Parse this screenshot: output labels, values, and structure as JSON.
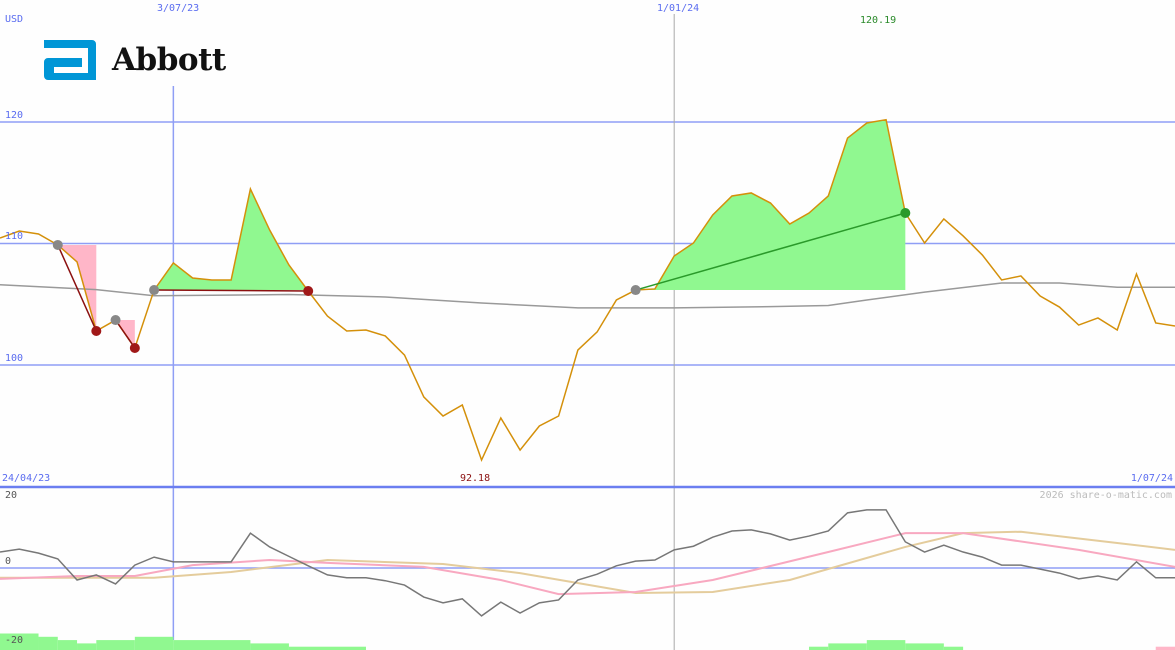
{
  "currency_label": "USD",
  "brand": {
    "name": "Abbott",
    "color": "#0096d6"
  },
  "watermark": "2026 share-o-matic.com",
  "colors": {
    "price": "#d4900a",
    "ma": "#999999",
    "grid": "#8f9ef5",
    "gain": "#90f890",
    "loss": "#ffb6c8",
    "loss_line": "#8b1010",
    "gain_line": "#2a9a2a",
    "osc": "#777777",
    "osc_fast": "#f8a8c0",
    "osc_slow": "#e4cc9c"
  },
  "chart_data": [
    {
      "type": "line",
      "ylabel": "USD",
      "ylim": [
        92,
        120
      ],
      "yticks": [
        "100",
        "110",
        "120"
      ],
      "date_labels": {
        "start": "24/04/23",
        "end": "1/07/24",
        "markers": [
          "3/07/23",
          "1/01/24"
        ]
      },
      "max_label": "120.19",
      "min_label": "92.18",
      "x": [
        "1/05/23",
        "8/05/23",
        "15/05/23",
        "22/05/23",
        "29/05/23",
        "5/06/23",
        "12/06/23",
        "19/06/23",
        "26/06/23",
        "3/07/23",
        "10/07/23",
        "17/07/23",
        "24/07/23",
        "31/07/23",
        "7/08/23",
        "14/08/23",
        "21/08/23",
        "28/08/23",
        "4/09/23",
        "11/09/23",
        "18/09/23",
        "25/09/23",
        "2/10/23",
        "9/10/23",
        "16/10/23",
        "23/10/23",
        "30/10/23",
        "6/11/23",
        "13/11/23",
        "20/11/23",
        "27/11/23",
        "4/12/23",
        "11/12/23",
        "18/12/23",
        "25/12/23",
        "1/01/24",
        "8/01/24",
        "15/01/24",
        "22/01/24",
        "29/01/24",
        "5/02/24",
        "12/02/24",
        "19/02/24",
        "26/02/24",
        "4/03/24",
        "11/03/24",
        "18/03/24",
        "25/03/24",
        "1/04/24",
        "8/04/24",
        "15/04/24",
        "22/04/24",
        "29/04/24",
        "6/05/24",
        "13/05/24",
        "20/05/24",
        "27/05/24",
        "3/06/24",
        "10/06/24",
        "17/06/24",
        "24/06/24",
        "1/07/24"
      ],
      "price": [
        110.45,
        111.03,
        110.78,
        109.88,
        108.48,
        102.8,
        103.7,
        101.4,
        106.17,
        108.4,
        107.16,
        107.0,
        107.0,
        114.49,
        111.11,
        108.23,
        106.09,
        104.03,
        102.8,
        102.88,
        102.39,
        100.82,
        97.37,
        95.8,
        96.71,
        92.18,
        95.64,
        93.0,
        94.98,
        95.8,
        101.23,
        102.72,
        105.35,
        106.17,
        106.26,
        108.97,
        110.04,
        112.35,
        113.91,
        114.16,
        113.33,
        111.6,
        112.51,
        113.91,
        118.68,
        119.92,
        120.19,
        112.51,
        110.04,
        112.02,
        110.62,
        109.05,
        107.0,
        107.33,
        105.68,
        104.77,
        103.29,
        103.87,
        102.88,
        107.49,
        103.46,
        103.21
      ],
      "moving_average": [
        {
          "x": "1/05/23",
          "y": 106.6
        },
        {
          "x": "5/06/23",
          "y": 106.2
        },
        {
          "x": "26/06/23",
          "y": 105.7
        },
        {
          "x": "14/08/23",
          "y": 105.8
        },
        {
          "x": "18/09/23",
          "y": 105.6
        },
        {
          "x": "23/10/23",
          "y": 105.1
        },
        {
          "x": "27/11/23",
          "y": 104.7
        },
        {
          "x": "1/01/24",
          "y": 104.7
        },
        {
          "x": "5/02/24",
          "y": 104.8
        },
        {
          "x": "26/02/24",
          "y": 104.9
        },
        {
          "x": "11/03/24",
          "y": 105.35
        },
        {
          "x": "1/04/24",
          "y": 106.0
        },
        {
          "x": "29/04/24",
          "y": 106.75
        },
        {
          "x": "20/05/24",
          "y": 106.75
        },
        {
          "x": "10/06/24",
          "y": 106.4
        },
        {
          "x": "1/07/24",
          "y": 106.4
        }
      ],
      "trades": [
        {
          "entry": "22/05/23",
          "exit": "5/06/23",
          "level": 109.88,
          "result": "loss"
        },
        {
          "entry": "12/06/23",
          "exit": "19/06/23",
          "level": 103.7,
          "result": "loss"
        },
        {
          "entry": "26/06/23",
          "exit": "21/08/23",
          "level": 106.17,
          "result": "loss"
        },
        {
          "entry": "18/12/23",
          "exit": "25/03/24",
          "level": 106.17,
          "result": "gain"
        }
      ]
    },
    {
      "type": "line",
      "ylim": [
        -20,
        20
      ],
      "yticks": [
        "-20",
        "0",
        "20"
      ],
      "oscillator": [
        4.4,
        5.2,
        4.1,
        2.5,
        -3.3,
        -1.9,
        -4.4,
        0.8,
        3,
        1.7,
        1.7,
        1.7,
        1.7,
        9.6,
        5.8,
        3.2,
        0.6,
        -1.9,
        -2.7,
        -2.7,
        -3.5,
        -4.7,
        -8,
        -9.6,
        -8.5,
        -13.2,
        -9.4,
        -12.4,
        -9.6,
        -8.8,
        -3.3,
        -1.7,
        0.6,
        1.9,
        2.2,
        5,
        6,
        8.5,
        10.2,
        10.5,
        9.4,
        7.7,
        8.8,
        10.2,
        15.2,
        16,
        16,
        7.2,
        4.4,
        6.3,
        4.4,
        3,
        0.8,
        0.8,
        -0.3,
        -1.4,
        -3,
        -2.2,
        -3.3,
        1.7,
        -2.7,
        -2.7
      ],
      "fast_signal": [
        {
          "x": "1/05/23",
          "y": -3
        },
        {
          "x": "29/05/23",
          "y": -2.2
        },
        {
          "x": "19/06/23",
          "y": -2.2
        },
        {
          "x": "10/07/23",
          "y": 0.8
        },
        {
          "x": "7/08/23",
          "y": 2.2
        },
        {
          "x": "28/08/23",
          "y": 1.4
        },
        {
          "x": "2/10/23",
          "y": 0.3
        },
        {
          "x": "30/10/23",
          "y": -3.3
        },
        {
          "x": "20/11/23",
          "y": -7.2
        },
        {
          "x": "18/12/23",
          "y": -6.6
        },
        {
          "x": "15/01/24",
          "y": -3.3
        },
        {
          "x": "26/02/24",
          "y": 4.4
        },
        {
          "x": "25/03/24",
          "y": 9.6
        },
        {
          "x": "15/04/24",
          "y": 9.6
        },
        {
          "x": "27/05/24",
          "y": 5
        },
        {
          "x": "1/07/24",
          "y": 0.3
        }
      ],
      "slow_signal": [
        {
          "x": "1/05/23",
          "y": -2.7
        },
        {
          "x": "26/06/23",
          "y": -2.7
        },
        {
          "x": "24/07/23",
          "y": -1.1
        },
        {
          "x": "28/08/23",
          "y": 2.2
        },
        {
          "x": "9/10/23",
          "y": 1.1
        },
        {
          "x": "6/11/23",
          "y": -1.4
        },
        {
          "x": "18/12/23",
          "y": -6.9
        },
        {
          "x": "15/01/24",
          "y": -6.6
        },
        {
          "x": "12/02/24",
          "y": -3.3
        },
        {
          "x": "25/03/24",
          "y": 5.8
        },
        {
          "x": "15/04/24",
          "y": 9.6
        },
        {
          "x": "6/05/24",
          "y": 10
        },
        {
          "x": "10/06/24",
          "y": 6.9
        },
        {
          "x": "1/07/24",
          "y": 5
        }
      ],
      "bars": [
        {
          "from": "1/05/23",
          "to": "15/05/23",
          "value": 5,
          "sign": "pos"
        },
        {
          "from": "15/05/23",
          "to": "22/05/23",
          "value": 4,
          "sign": "pos"
        },
        {
          "from": "22/05/23",
          "to": "29/05/23",
          "value": 3,
          "sign": "pos"
        },
        {
          "from": "29/05/23",
          "to": "5/06/23",
          "value": 2,
          "sign": "pos"
        },
        {
          "from": "5/06/23",
          "to": "19/06/23",
          "value": 3,
          "sign": "pos"
        },
        {
          "from": "19/06/23",
          "to": "3/07/23",
          "value": 4,
          "sign": "pos"
        },
        {
          "from": "3/07/23",
          "to": "31/07/23",
          "value": 3,
          "sign": "pos"
        },
        {
          "from": "31/07/23",
          "to": "14/08/23",
          "value": 2,
          "sign": "pos"
        },
        {
          "from": "14/08/23",
          "to": "11/09/23",
          "value": 1,
          "sign": "pos"
        },
        {
          "from": "19/02/24",
          "to": "26/02/24",
          "value": 1,
          "sign": "pos"
        },
        {
          "from": "26/02/24",
          "to": "11/03/24",
          "value": 2,
          "sign": "pos"
        },
        {
          "from": "11/03/24",
          "to": "25/03/24",
          "value": 3,
          "sign": "pos"
        },
        {
          "from": "25/03/24",
          "to": "8/04/24",
          "value": 2,
          "sign": "pos"
        },
        {
          "from": "8/04/24",
          "to": "15/04/24",
          "value": 1,
          "sign": "pos"
        },
        {
          "from": "24/06/24",
          "to": "1/07/24",
          "value": 1,
          "sign": "neg"
        }
      ]
    }
  ]
}
